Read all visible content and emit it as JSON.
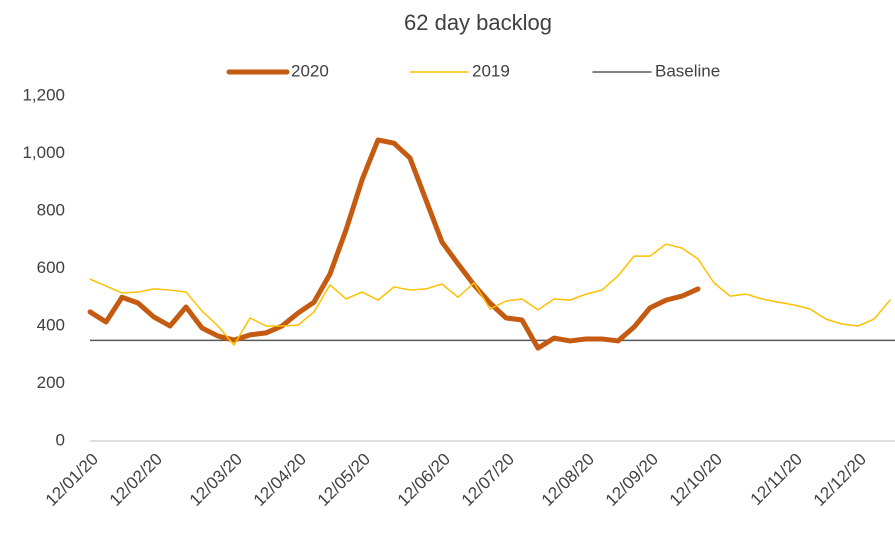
{
  "chart_data": {
    "type": "line",
    "title": "62 day backlog",
    "categories": [
      "12/01/20",
      null,
      null,
      null,
      "12/02/20",
      null,
      null,
      null,
      null,
      "12/03/20",
      null,
      null,
      null,
      "12/04/20",
      null,
      null,
      null,
      "12/05/20",
      null,
      null,
      null,
      null,
      "12/06/20",
      null,
      null,
      null,
      "12/07/20",
      null,
      null,
      null,
      null,
      "12/08/20",
      null,
      null,
      null,
      "12/09/20",
      null,
      null,
      null,
      "12/10/20",
      null,
      null,
      null,
      null,
      "12/11/20",
      null,
      null,
      null,
      "12/12/20",
      null,
      null
    ],
    "series": [
      {
        "name": "2020",
        "color": "#c55a11",
        "values": [
          449,
          414,
          500,
          480,
          431,
          400,
          466,
          393,
          365,
          351,
          369,
          376,
          400,
          445,
          483,
          581,
          734,
          908,
          1047,
          1036,
          984,
          838,
          692,
          616,
          543,
          480,
          428,
          421,
          323,
          358,
          348,
          355,
          355,
          348,
          396,
          463,
          490,
          504,
          529,
          null,
          null,
          null,
          null,
          null,
          null,
          null,
          null,
          null,
          null,
          null,
          null
        ]
      },
      {
        "name": "2019",
        "color": "#ffc000",
        "values": [
          563,
          539,
          515,
          518,
          529,
          525,
          518,
          452,
          400,
          334,
          428,
          400,
          400,
          403,
          449,
          543,
          494,
          518,
          490,
          536,
          525,
          529,
          546,
          500,
          550,
          459,
          487,
          494,
          456,
          494,
          490,
          511,
          525,
          574,
          643,
          643,
          685,
          671,
          633,
          550,
          504,
          511,
          494,
          483,
          473,
          459,
          424,
          407,
          400,
          424,
          490
        ]
      }
    ],
    "baseline": {
      "name": "Baseline",
      "color": "#595959",
      "value": 350
    },
    "ylim": [
      0,
      1200
    ],
    "yticks": [
      0,
      200,
      400,
      600,
      800,
      {
        "value": 1000,
        "label": "1,000"
      },
      {
        "value": 1200,
        "label": "1,200"
      }
    ],
    "grid": false,
    "legend": "top"
  }
}
